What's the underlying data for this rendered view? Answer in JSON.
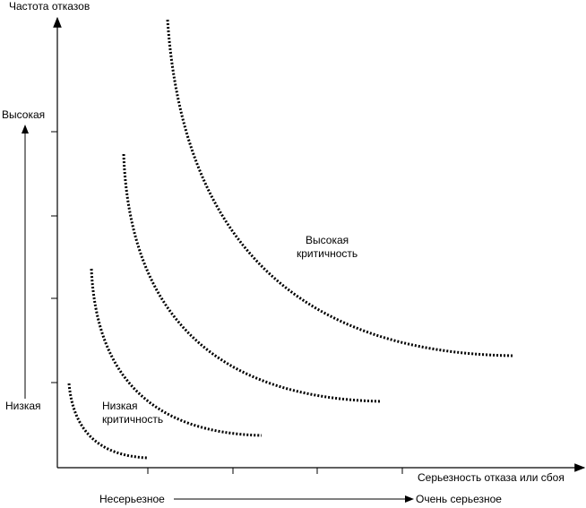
{
  "y_axis": {
    "title": "Частота отказов",
    "high_label": "Высокая",
    "low_label": "Низкая"
  },
  "x_axis": {
    "title": "Серьезность отказа или сбоя",
    "low_label": "Несерьезное",
    "high_label": "Очень серьезное"
  },
  "regions": {
    "low": {
      "line1": "Низкая",
      "line2": "критичность"
    },
    "high": {
      "line1": "Высокая",
      "line2": "критичность"
    }
  }
}
